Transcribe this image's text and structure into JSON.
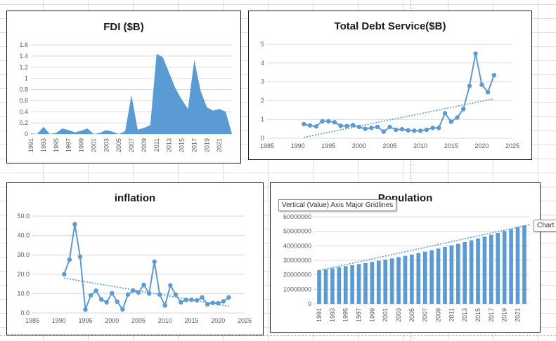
{
  "tooltips": {
    "gridlines": "Vertical (Value) Axis Major Gridlines",
    "chart": "Chart"
  },
  "colors": {
    "series": "#5b9bd5",
    "grid": "#d9d9d9",
    "text": "#595959"
  },
  "chart_data": [
    {
      "id": "fdi",
      "type": "area",
      "title": "FDI ($B)",
      "x": [
        1991,
        1992,
        1993,
        1994,
        1995,
        1996,
        1997,
        1998,
        1999,
        2000,
        2001,
        2002,
        2003,
        2004,
        2005,
        2006,
        2007,
        2008,
        2009,
        2010,
        2011,
        2012,
        2013,
        2014,
        2015,
        2016,
        2017,
        2018,
        2019,
        2020,
        2021,
        2022,
        2023
      ],
      "values": [
        0.01,
        0.0,
        0.13,
        0.0,
        0.02,
        0.1,
        0.07,
        0.03,
        0.06,
        0.1,
        0.0,
        0.02,
        0.07,
        0.04,
        0.0,
        0.05,
        0.7,
        0.08,
        0.11,
        0.16,
        1.44,
        1.38,
        1.1,
        0.82,
        0.62,
        0.45,
        1.33,
        0.78,
        0.48,
        0.42,
        0.45,
        0.4,
        0.0
      ],
      "x_tick_labels": [
        "1991",
        "1993",
        "1995",
        "1997",
        "1999",
        "2001",
        "2003",
        "2005",
        "2007",
        "2009",
        "2011",
        "2013",
        "2015",
        "2017",
        "2019",
        "2021"
      ],
      "y_tick_labels": [
        "0",
        "0.2",
        "0.4",
        "0.6",
        "0.8",
        "1",
        "1.2",
        "1.4",
        "1.6"
      ],
      "ylim": [
        0,
        1.6
      ],
      "grid": true
    },
    {
      "id": "debt",
      "type": "line",
      "title": "Total Debt Service($B)",
      "x": [
        1991,
        1992,
        1993,
        1994,
        1995,
        1996,
        1997,
        1998,
        1999,
        2000,
        2001,
        2002,
        2003,
        2004,
        2005,
        2006,
        2007,
        2008,
        2009,
        2010,
        2011,
        2012,
        2013,
        2014,
        2015,
        2016,
        2017,
        2018,
        2019,
        2020,
        2021,
        2022
      ],
      "values": [
        0.75,
        0.68,
        0.63,
        0.9,
        0.9,
        0.85,
        0.66,
        0.65,
        0.7,
        0.6,
        0.5,
        0.55,
        0.6,
        0.35,
        0.6,
        0.45,
        0.48,
        0.42,
        0.4,
        0.4,
        0.45,
        0.55,
        0.55,
        1.33,
        0.88,
        1.1,
        1.55,
        2.78,
        4.5,
        2.85,
        2.45,
        3.35
      ],
      "trendline": {
        "x": [
          1991,
          2022
        ],
        "y": [
          0.05,
          2.1
        ]
      },
      "x_tick_labels": [
        "1985",
        "1990",
        "1995",
        "2000",
        "2005",
        "2010",
        "2015",
        "2020",
        "2025"
      ],
      "y_tick_labels": [
        "0",
        "1",
        "2",
        "3",
        "4",
        "5"
      ],
      "xlim": [
        1985,
        2025
      ],
      "ylim": [
        0,
        5
      ],
      "grid": true
    },
    {
      "id": "inflation",
      "type": "line",
      "title": "inflation",
      "x": [
        1991,
        1992,
        1993,
        1994,
        1995,
        1996,
        1997,
        1998,
        1999,
        2000,
        2001,
        2002,
        2003,
        2004,
        2005,
        2006,
        2007,
        2008,
        2009,
        2010,
        2011,
        2012,
        2013,
        2014,
        2015,
        2016,
        2017,
        2018,
        2019,
        2020,
        2021,
        2022
      ],
      "values": [
        20.0,
        27.5,
        45.8,
        29.0,
        1.7,
        9.0,
        11.5,
        7.0,
        5.5,
        10.2,
        5.8,
        1.8,
        9.5,
        11.6,
        10.5,
        14.5,
        10.0,
        26.5,
        9.5,
        3.8,
        14.2,
        9.5,
        5.5,
        6.7,
        6.8,
        6.5,
        8.0,
        4.5,
        5.2,
        5.0,
        6.0,
        8.0
      ],
      "trendline": {
        "x": [
          1991,
          2022
        ],
        "y": [
          18.0,
          3.5
        ]
      },
      "x_tick_labels": [
        "1985",
        "1990",
        "1995",
        "2000",
        "2005",
        "2010",
        "2015",
        "2020",
        "2025"
      ],
      "y_tick_labels": [
        "0.0",
        "10.0",
        "20.0",
        "30.0",
        "40.0",
        "50.0"
      ],
      "xlim": [
        1985,
        2025
      ],
      "ylim": [
        0,
        50
      ],
      "grid": true
    },
    {
      "id": "population",
      "type": "bar",
      "title": "Population",
      "x": [
        1991,
        1992,
        1993,
        1994,
        1995,
        1996,
        1997,
        1998,
        1999,
        2000,
        2001,
        2002,
        2003,
        2004,
        2005,
        2006,
        2007,
        2008,
        2009,
        2010,
        2011,
        2012,
        2013,
        2014,
        2015,
        2016,
        2017,
        2018,
        2019,
        2020,
        2021,
        2022
      ],
      "values": [
        23200000,
        23800000,
        24500000,
        25200000,
        26000000,
        26700000,
        27400000,
        28100000,
        28900000,
        29700000,
        30500000,
        31300000,
        32200000,
        33100000,
        34000000,
        35000000,
        36000000,
        37000000,
        38100000,
        39200000,
        40300000,
        41400000,
        42600000,
        43800000,
        45000000,
        46300000,
        47600000,
        48900000,
        50200000,
        51500000,
        52800000,
        54100000
      ],
      "trendline": {
        "x": [
          1991,
          2023
        ],
        "y": [
          23000000,
          54800000
        ]
      },
      "x_tick_labels": [
        "1991",
        "1993",
        "1995",
        "1997",
        "1999",
        "2001",
        "2003",
        "2005",
        "2007",
        "2009",
        "2011",
        "2013",
        "2015",
        "2017",
        "2019",
        "2021"
      ],
      "y_tick_labels": [
        "0",
        "10000000",
        "20000000",
        "30000000",
        "40000000",
        "50000000",
        "60000000"
      ],
      "ylim": [
        0,
        60000000
      ],
      "grid": true
    }
  ]
}
